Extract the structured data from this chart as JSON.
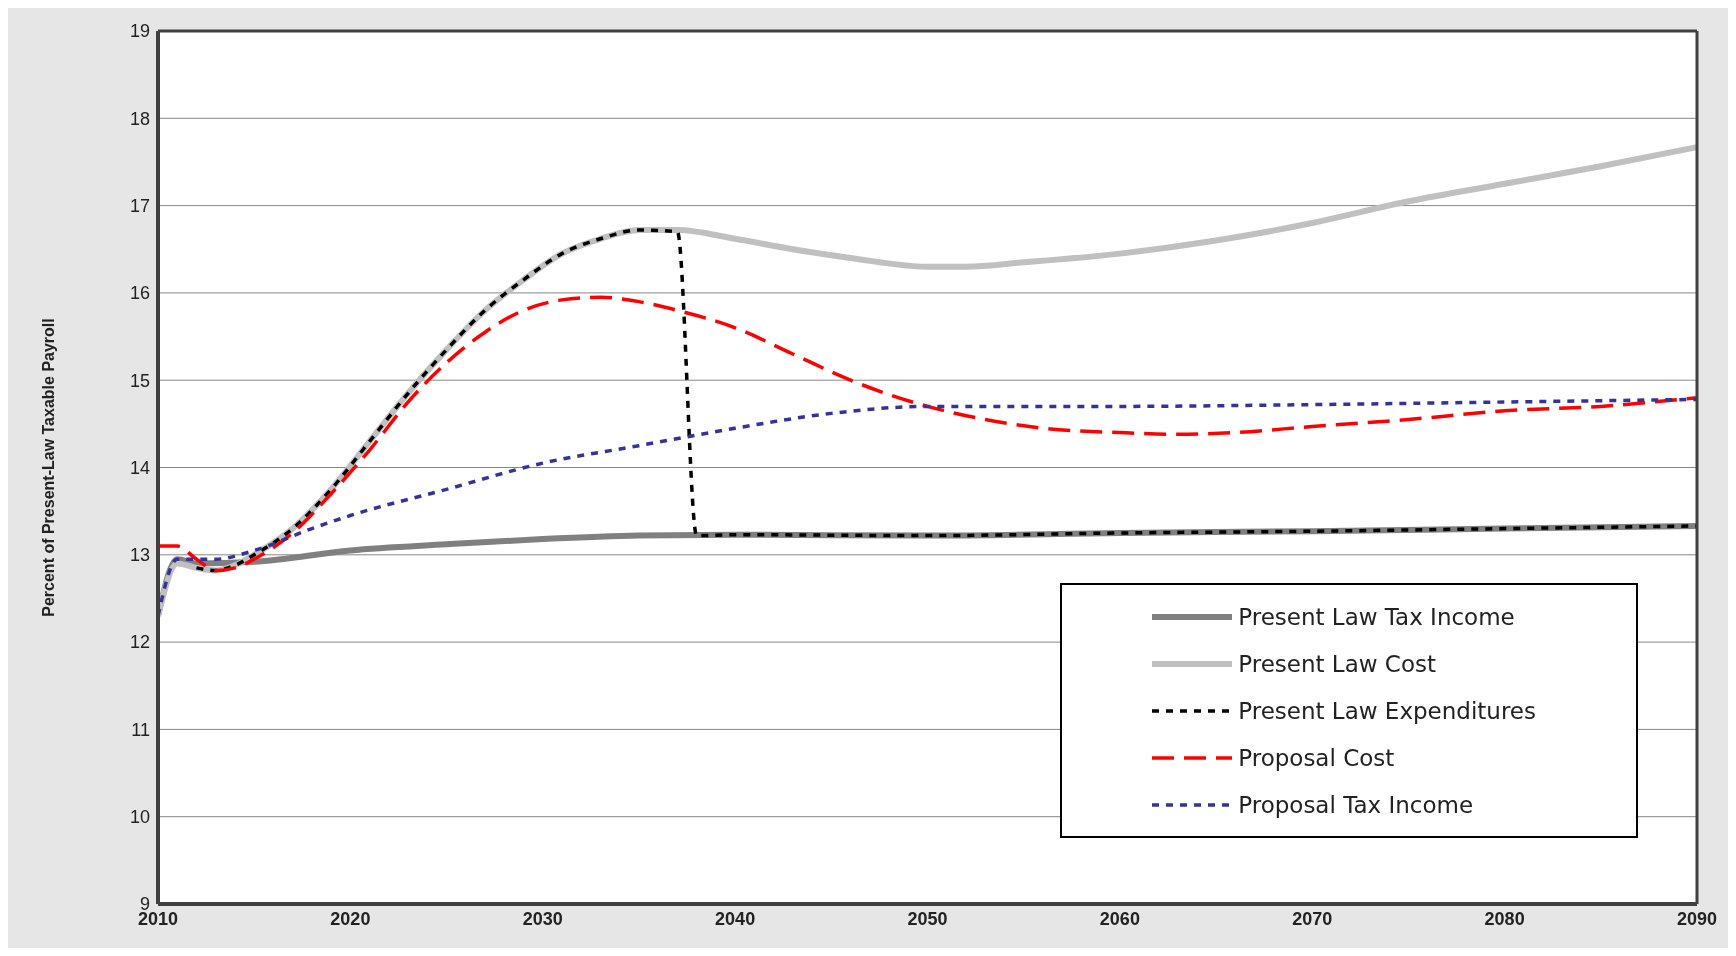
{
  "chart_data": {
    "type": "line",
    "ylabel": "Percent of Present-Law Taxable Payroll",
    "xlim": [
      2010,
      2090
    ],
    "xticks": [
      2010,
      2020,
      2030,
      2040,
      2050,
      2060,
      2070,
      2080,
      2090
    ],
    "ylim": [
      9,
      19
    ],
    "yticks": [
      9,
      10,
      11,
      12,
      13,
      14,
      15,
      16,
      17,
      18,
      19
    ],
    "grid": "y",
    "legend": "bottom right",
    "marker": "none",
    "series": [
      {
        "name": "Present Law Tax Income",
        "color": "#808080",
        "line_style": "solid",
        "x": [
          2010,
          2011,
          2012,
          2015,
          2020,
          2025,
          2030,
          2035,
          2040,
          2050,
          2060,
          2070,
          2080,
          2090
        ],
        "values": [
          12.3,
          12.95,
          12.9,
          12.92,
          13.05,
          13.12,
          13.18,
          13.22,
          13.23,
          13.22,
          13.25,
          13.27,
          13.3,
          13.33
        ]
      },
      {
        "name": "Present Law Cost",
        "color": "#c0c0c0",
        "line_style": "solid",
        "x": [
          2010,
          2011,
          2012,
          2013,
          2014,
          2015,
          2017,
          2019,
          2021,
          2023,
          2025,
          2027,
          2029,
          2031,
          2033,
          2035,
          2037,
          2040,
          2043,
          2046,
          2050,
          2052,
          2055,
          2060,
          2065,
          2070,
          2075,
          2080,
          2085,
          2090
        ],
        "values": [
          12.3,
          12.9,
          12.85,
          12.82,
          12.88,
          13.0,
          13.3,
          13.75,
          14.3,
          14.85,
          15.35,
          15.8,
          16.15,
          16.45,
          16.62,
          16.72,
          16.72,
          16.62,
          16.5,
          16.4,
          16.3,
          16.3,
          16.35,
          16.45,
          16.6,
          16.8,
          17.05,
          17.25,
          17.45,
          17.67
        ]
      },
      {
        "name": "Present Law Expenditures",
        "color": "#000000",
        "line_style": "dotted",
        "x": [
          2012,
          2013,
          2014,
          2015,
          2017,
          2019,
          2021,
          2023,
          2025,
          2027,
          2029,
          2031,
          2033,
          2035,
          2037,
          2038,
          2040,
          2050,
          2060,
          2070,
          2080,
          2090
        ],
        "values": [
          12.85,
          12.82,
          12.88,
          13.0,
          13.3,
          13.75,
          14.3,
          14.85,
          15.35,
          15.8,
          16.15,
          16.45,
          16.62,
          16.72,
          16.7,
          13.22,
          13.23,
          13.22,
          13.25,
          13.27,
          13.3,
          13.33
        ]
      },
      {
        "name": "Proposal Cost",
        "color": "#ff0000",
        "line_style": "dashed",
        "x": [
          2010,
          2011,
          2012,
          2013,
          2014,
          2015,
          2017,
          2019,
          2021,
          2023,
          2025,
          2027,
          2029,
          2031,
          2033,
          2035,
          2037,
          2040,
          2043,
          2046,
          2050,
          2053,
          2056,
          2060,
          2063,
          2066,
          2070,
          2075,
          2080,
          2085,
          2090
        ],
        "values": [
          13.1,
          13.1,
          12.95,
          12.82,
          12.85,
          12.95,
          13.25,
          13.7,
          14.2,
          14.75,
          15.2,
          15.55,
          15.8,
          15.92,
          15.95,
          15.9,
          15.8,
          15.6,
          15.3,
          15.0,
          14.7,
          14.55,
          14.45,
          14.4,
          14.38,
          14.4,
          14.47,
          14.55,
          14.65,
          14.7,
          14.8
        ]
      },
      {
        "name": "Proposal Tax Income",
        "color": "#333399",
        "line_style": "dotted",
        "x": [
          2010,
          2011,
          2013,
          2015,
          2018,
          2020,
          2025,
          2030,
          2035,
          2040,
          2045,
          2050,
          2060,
          2070,
          2080,
          2090
        ],
        "values": [
          12.3,
          12.95,
          12.95,
          13.05,
          13.3,
          13.45,
          13.75,
          14.05,
          14.25,
          14.45,
          14.62,
          14.7,
          14.7,
          14.72,
          14.75,
          14.78
        ]
      }
    ]
  }
}
